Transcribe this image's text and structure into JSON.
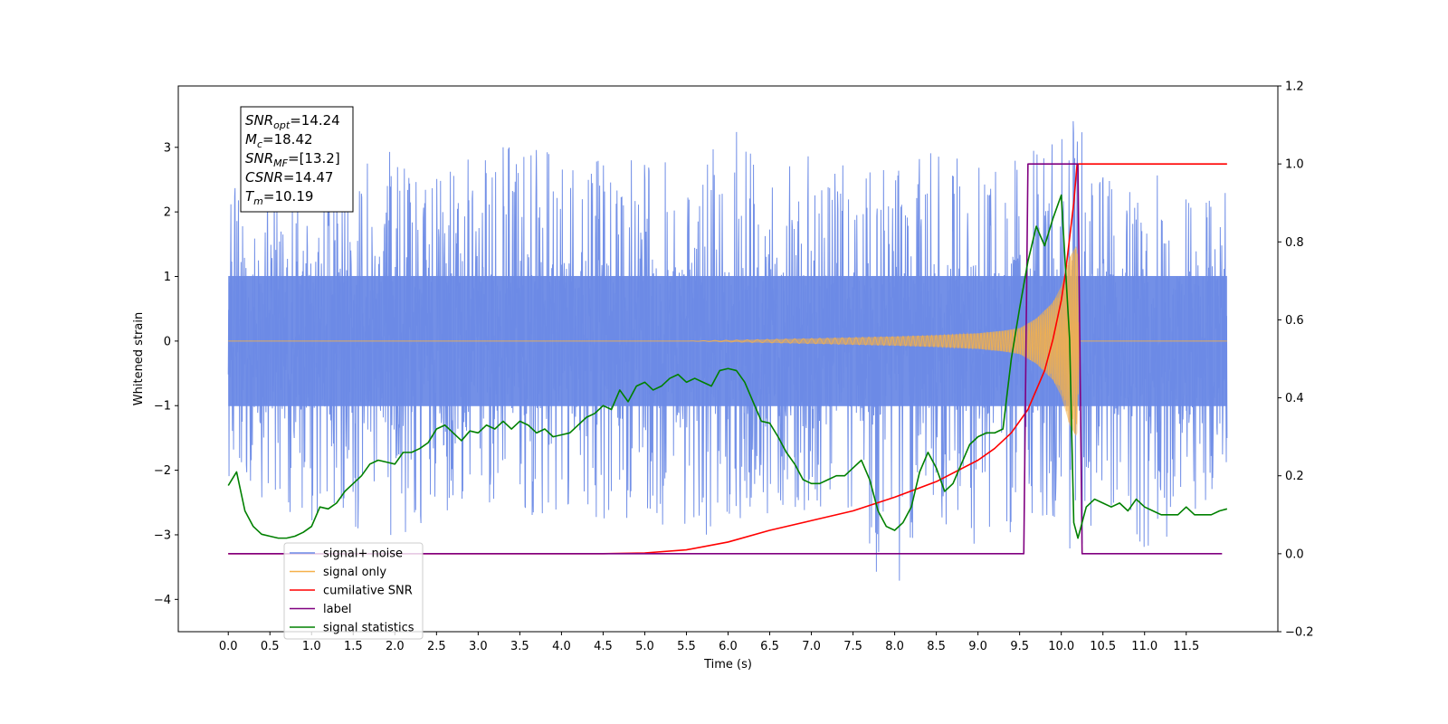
{
  "chart_data": {
    "type": "line",
    "title": "",
    "xlabel": "Time (s)",
    "ylabel": "Whitened strain",
    "xlim": [
      -0.6,
      12.6
    ],
    "ylim": [
      -4.5,
      3.95
    ],
    "y2lim": [
      -0.2,
      1.2
    ],
    "grid": false,
    "x_ticks": [
      0.0,
      0.5,
      1.0,
      1.5,
      2.0,
      2.5,
      3.0,
      3.5,
      4.0,
      4.5,
      5.0,
      5.5,
      6.0,
      6.5,
      7.0,
      7.5,
      8.0,
      8.5,
      9.0,
      9.5,
      10.0,
      10.5,
      11.0,
      11.5
    ],
    "x_tick_labels": [
      "0.0",
      "0.5",
      "1.0",
      "1.5",
      "2.0",
      "2.5",
      "3.0",
      "3.5",
      "4.0",
      "4.5",
      "5.0",
      "5.5",
      "6.0",
      "6.5",
      "7.0",
      "7.5",
      "8.0",
      "8.5",
      "9.0",
      "9.5",
      "10.0",
      "10.5",
      "11.0",
      "11.5"
    ],
    "y_ticks": [
      3,
      2,
      1,
      0,
      -1,
      -2,
      -3,
      -4
    ],
    "y_tick_labels": [
      "3",
      "2",
      "1",
      "0",
      "−1",
      "−2",
      "−3",
      "−4"
    ],
    "y2_ticks": [
      1.2,
      1.0,
      0.8,
      0.6,
      0.4,
      0.2,
      0.0,
      -0.2
    ],
    "y2_tick_labels": [
      "1.2",
      "1.0",
      "0.8",
      "0.6",
      "0.4",
      "0.2",
      "0.0",
      "−0.2"
    ],
    "series": [
      {
        "name": "signal+ noise",
        "color": "#6b8ae6",
        "axis": "left",
        "kind": "envelope",
        "x": [
          0.0,
          0.5,
          1.0,
          1.5,
          2.0,
          2.5,
          3.0,
          3.5,
          4.0,
          4.5,
          5.0,
          5.5,
          6.0,
          6.5,
          7.0,
          7.5,
          8.0,
          8.5,
          9.0,
          9.5,
          10.0,
          10.12,
          10.5,
          11.0,
          11.5,
          11.99
        ],
        "upper": [
          2.8,
          2.5,
          2.6,
          2.7,
          3.1,
          2.6,
          2.9,
          3.3,
          2.8,
          2.9,
          2.8,
          2.9,
          3.4,
          2.8,
          2.9,
          2.9,
          2.6,
          3.0,
          2.8,
          2.9,
          3.2,
          3.6,
          2.7,
          2.8,
          2.6,
          2.4
        ],
        "lower": [
          -2.2,
          -2.6,
          -2.8,
          -2.9,
          -3.2,
          -2.6,
          -2.7,
          -2.8,
          -2.6,
          -2.8,
          -2.7,
          -3.2,
          -2.8,
          -2.7,
          -2.9,
          -3.1,
          -3.95,
          -2.8,
          -3.3,
          -2.9,
          -2.7,
          -3.35,
          -2.8,
          -3.3,
          -2.8,
          -2.3
        ],
        "core": 1.55
      },
      {
        "name": "signal only",
        "color": "#f5b04a",
        "axis": "left",
        "kind": "chirp",
        "x": [
          0.0,
          5.5,
          7.0,
          8.0,
          8.5,
          9.0,
          9.3,
          9.5,
          9.7,
          9.9,
          10.0,
          10.1,
          10.19,
          10.22,
          11.99
        ],
        "amplitude": [
          0.0,
          0.0,
          0.04,
          0.07,
          0.09,
          0.12,
          0.16,
          0.2,
          0.35,
          0.6,
          0.85,
          1.3,
          1.5,
          0.0,
          0.0
        ]
      },
      {
        "name": "cumilative SNR",
        "color": "#ff0000",
        "axis": "right",
        "x": [
          0.0,
          4.5,
          5.0,
          5.5,
          6.0,
          6.5,
          7.0,
          7.5,
          8.0,
          8.5,
          9.0,
          9.2,
          9.4,
          9.6,
          9.8,
          9.9,
          10.0,
          10.05,
          10.1,
          10.15,
          10.19,
          10.2,
          11.99
        ],
        "y": [
          0.0,
          0.0,
          0.002,
          0.01,
          0.03,
          0.06,
          0.085,
          0.11,
          0.145,
          0.185,
          0.24,
          0.27,
          0.31,
          0.37,
          0.47,
          0.55,
          0.65,
          0.72,
          0.81,
          0.9,
          1.0,
          1.0,
          1.0
        ]
      },
      {
        "name": "label",
        "color": "#800080",
        "axis": "right",
        "x": [
          0.0,
          9.55,
          9.6,
          10.2,
          10.25,
          11.93
        ],
        "y": [
          0.0,
          0.0,
          1.0,
          1.0,
          0.0,
          0.0
        ]
      },
      {
        "name": "signal statistics",
        "color": "#008000",
        "axis": "right",
        "x": [
          0.0,
          0.1,
          0.2,
          0.3,
          0.4,
          0.5,
          0.6,
          0.7,
          0.8,
          0.9,
          1.0,
          1.1,
          1.2,
          1.3,
          1.4,
          1.5,
          1.6,
          1.7,
          1.8,
          1.9,
          2.0,
          2.1,
          2.2,
          2.3,
          2.4,
          2.5,
          2.6,
          2.7,
          2.8,
          2.9,
          3.0,
          3.1,
          3.2,
          3.3,
          3.4,
          3.5,
          3.6,
          3.7,
          3.8,
          3.9,
          4.0,
          4.1,
          4.2,
          4.3,
          4.4,
          4.5,
          4.6,
          4.7,
          4.8,
          4.9,
          5.0,
          5.1,
          5.2,
          5.3,
          5.4,
          5.5,
          5.6,
          5.7,
          5.8,
          5.9,
          6.0,
          6.1,
          6.2,
          6.3,
          6.4,
          6.5,
          6.6,
          6.7,
          6.8,
          6.9,
          7.0,
          7.1,
          7.2,
          7.3,
          7.4,
          7.5,
          7.6,
          7.7,
          7.8,
          7.9,
          8.0,
          8.1,
          8.2,
          8.3,
          8.4,
          8.5,
          8.6,
          8.7,
          8.8,
          8.9,
          9.0,
          9.1,
          9.2,
          9.3,
          9.4,
          9.5,
          9.6,
          9.7,
          9.8,
          9.9,
          10.0,
          10.1,
          10.15,
          10.2,
          10.25,
          10.3,
          10.4,
          10.5,
          10.6,
          10.7,
          10.8,
          10.9,
          11.0,
          11.1,
          11.2,
          11.3,
          11.4,
          11.5,
          11.6,
          11.7,
          11.8,
          11.9,
          11.99
        ],
        "y": [
          0.175,
          0.21,
          0.11,
          0.07,
          0.05,
          0.045,
          0.04,
          0.04,
          0.045,
          0.055,
          0.07,
          0.12,
          0.115,
          0.13,
          0.16,
          0.18,
          0.2,
          0.23,
          0.24,
          0.235,
          0.23,
          0.26,
          0.26,
          0.27,
          0.285,
          0.32,
          0.33,
          0.31,
          0.29,
          0.315,
          0.31,
          0.33,
          0.32,
          0.34,
          0.32,
          0.34,
          0.33,
          0.31,
          0.32,
          0.3,
          0.305,
          0.31,
          0.33,
          0.35,
          0.36,
          0.38,
          0.37,
          0.42,
          0.39,
          0.43,
          0.44,
          0.42,
          0.43,
          0.45,
          0.46,
          0.44,
          0.45,
          0.44,
          0.43,
          0.47,
          0.475,
          0.47,
          0.44,
          0.39,
          0.34,
          0.335,
          0.3,
          0.26,
          0.23,
          0.19,
          0.18,
          0.18,
          0.19,
          0.2,
          0.2,
          0.22,
          0.24,
          0.19,
          0.11,
          0.07,
          0.06,
          0.08,
          0.12,
          0.21,
          0.26,
          0.22,
          0.16,
          0.18,
          0.23,
          0.28,
          0.3,
          0.31,
          0.31,
          0.32,
          0.5,
          0.63,
          0.75,
          0.84,
          0.79,
          0.86,
          0.92,
          0.55,
          0.08,
          0.04,
          0.08,
          0.12,
          0.14,
          0.13,
          0.12,
          0.13,
          0.11,
          0.14,
          0.12,
          0.11,
          0.1,
          0.1,
          0.1,
          0.12,
          0.1,
          0.1,
          0.1,
          0.11,
          0.115
        ]
      }
    ],
    "info_box": {
      "position": "top-left",
      "lines": [
        {
          "symbol": "SNR",
          "sub": "opt",
          "value": "=14.24"
        },
        {
          "symbol": "M",
          "sub": "c",
          "value": "=18.42"
        },
        {
          "symbol": "SNR",
          "sub": "MF",
          "value": "=[13.2]"
        },
        {
          "symbol": "CSNR",
          "sub": "",
          "value": "=14.47"
        },
        {
          "symbol": "T",
          "sub": "m",
          "value": "=10.19"
        }
      ]
    },
    "legend": {
      "position": "bottom-left",
      "entries": [
        {
          "label": "signal+ noise",
          "color": "#6b8ae6"
        },
        {
          "label": "signal only",
          "color": "#f5b04a"
        },
        {
          "label": "cumilative SNR",
          "color": "#ff0000"
        },
        {
          "label": "label",
          "color": "#800080"
        },
        {
          "label": "signal statistics",
          "color": "#008000"
        }
      ]
    }
  }
}
